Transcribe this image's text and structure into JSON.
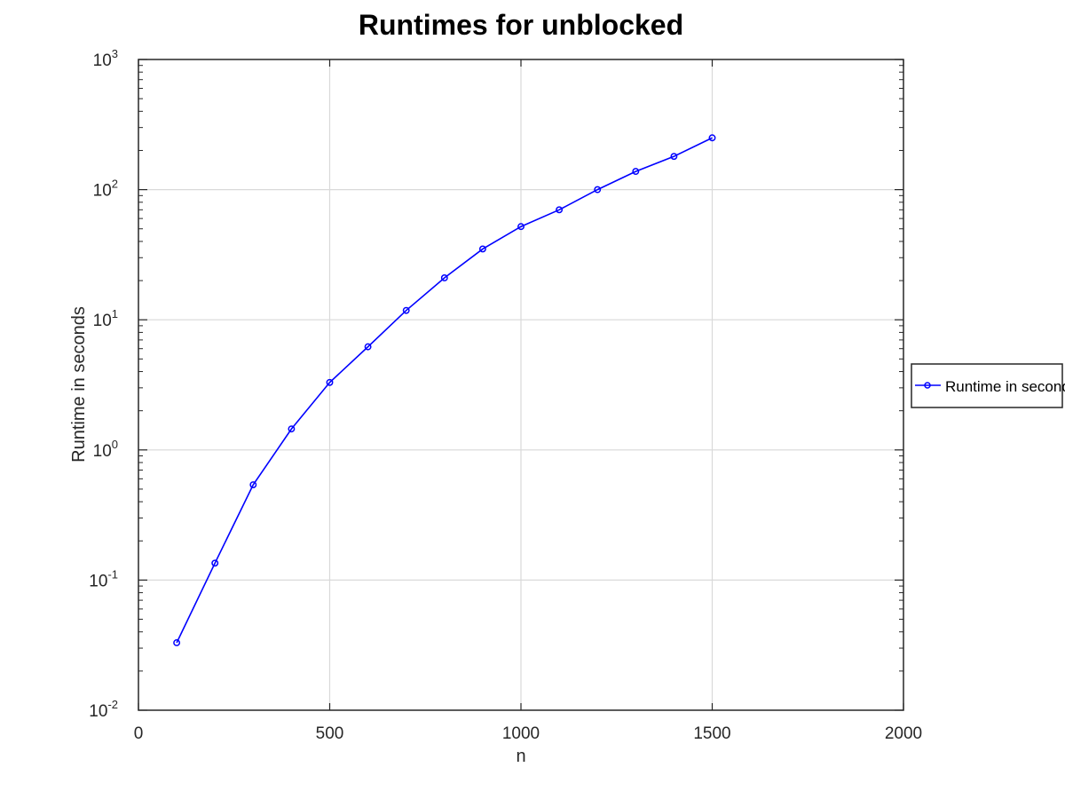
{
  "chart_data": {
    "type": "line",
    "title": "Runtimes for unblocked",
    "xlabel": "n",
    "ylabel": "Runtime in seconds",
    "xlim": [
      0,
      2000
    ],
    "ylim": [
      0.01,
      1000
    ],
    "yscale": "log",
    "grid": true,
    "legend_position": "outside-right",
    "x_ticks": [
      "0",
      "500",
      "1000",
      "1500",
      "2000"
    ],
    "y_ticks": [
      {
        "base": "10",
        "exp": "-2"
      },
      {
        "base": "10",
        "exp": "-1"
      },
      {
        "base": "10",
        "exp": "0"
      },
      {
        "base": "10",
        "exp": "1"
      },
      {
        "base": "10",
        "exp": "2"
      },
      {
        "base": "10",
        "exp": "3"
      }
    ],
    "series": [
      {
        "name": "Runtime in seconds",
        "color": "#0000ff",
        "marker": "circle",
        "x": [
          100,
          200,
          300,
          400,
          500,
          600,
          700,
          800,
          900,
          1000,
          1100,
          1200,
          1300,
          1400,
          1500
        ],
        "values": [
          0.033,
          0.135,
          0.54,
          1.45,
          3.3,
          6.2,
          11.8,
          21.0,
          35.0,
          52.0,
          70.0,
          100.0,
          138.0,
          180.0,
          250.0
        ]
      }
    ]
  }
}
